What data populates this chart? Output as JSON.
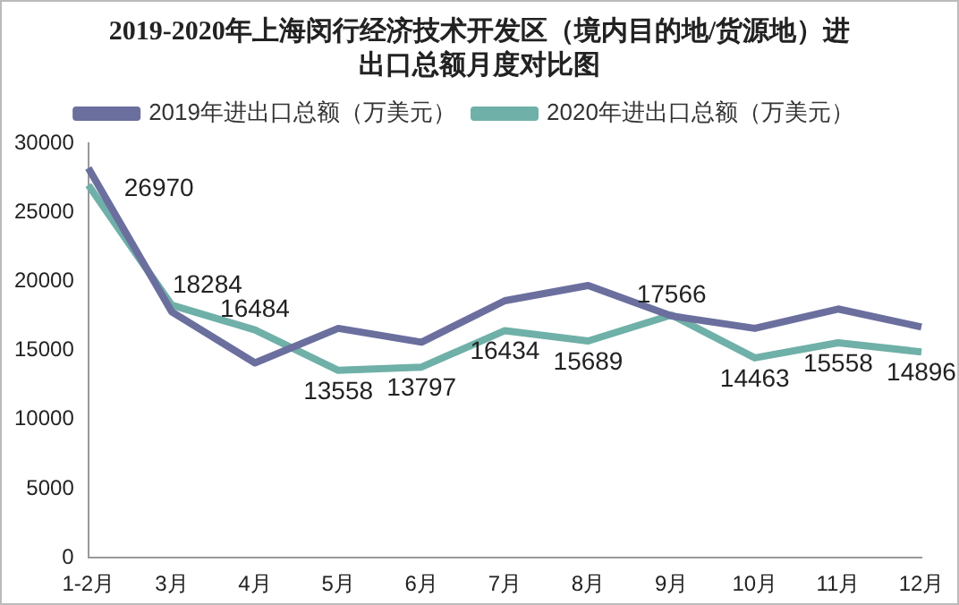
{
  "chart_data": {
    "type": "line",
    "title": "2019-2020年上海闵行经济技术开发区（境内目的地/货源地）进出口总额月度对比图",
    "categories": [
      "1-2月",
      "3月",
      "4月",
      "5月",
      "6月",
      "7月",
      "8月",
      "9月",
      "10月",
      "11月",
      "12月"
    ],
    "series": [
      {
        "name": "2019年进出口总额（万美元）",
        "color": "#6b6f9e",
        "values": [
          28200,
          17800,
          14100,
          16600,
          15600,
          18600,
          19700,
          17500,
          16600,
          18000,
          16700
        ]
      },
      {
        "name": "2020年进出口总额（万美元）",
        "color": "#6fb0a8",
        "values": [
          26970,
          18284,
          16484,
          13558,
          13797,
          16434,
          15689,
          17566,
          14463,
          15558,
          14896
        ],
        "value_labels": [
          "26970",
          "18284",
          "16484",
          "13558",
          "13797",
          "16434",
          "15689",
          "17566",
          "14463",
          "15558",
          "14896"
        ]
      }
    ],
    "ylim": [
      0,
      30000
    ],
    "yticks": [
      0,
      5000,
      10000,
      15000,
      20000,
      25000,
      30000
    ],
    "grid": false,
    "legend": "top",
    "marker": "none"
  }
}
